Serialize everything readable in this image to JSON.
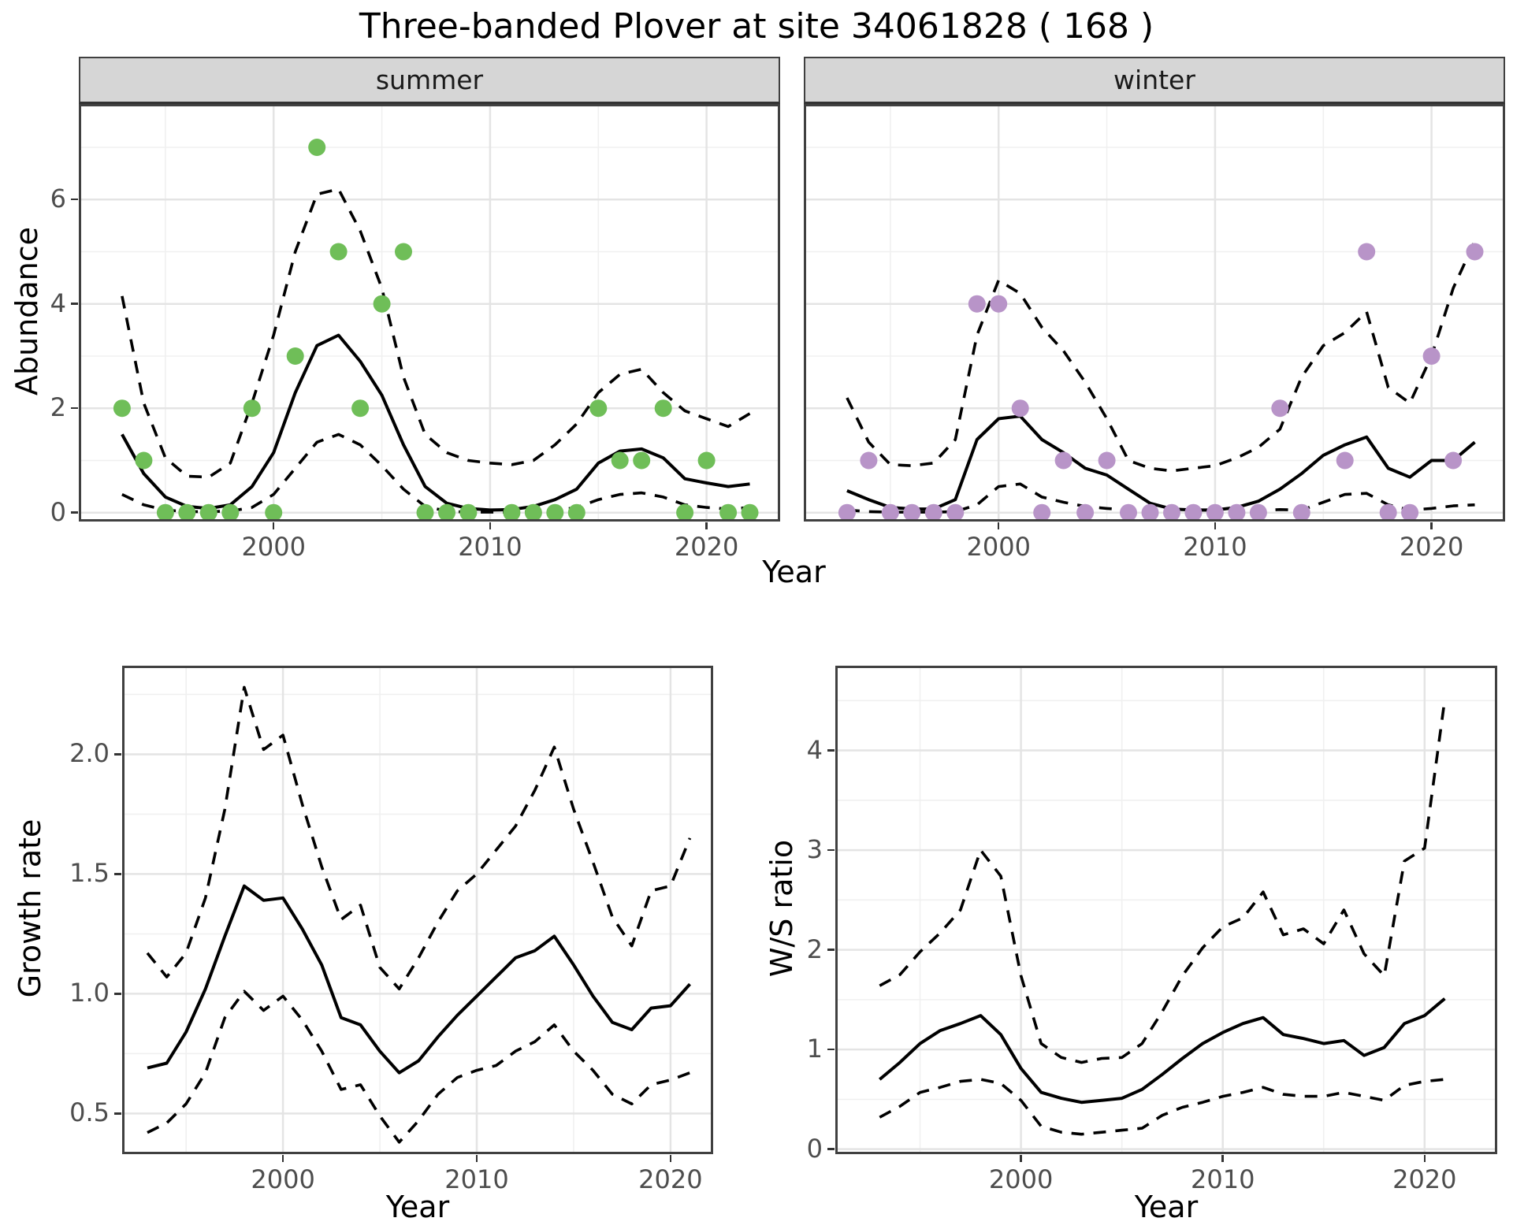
{
  "title": "Three-banded Plover at site 34061828 ( 168 )",
  "figure": {
    "top": {
      "ylab": "Abundance",
      "xlab": "Year"
    },
    "bottom_left": {
      "ylab": "Growth rate",
      "xlab": "Year"
    },
    "bottom_right": {
      "ylab": "W/S ratio",
      "xlab": "Year"
    }
  },
  "colors": {
    "summer_points": "#6FBE58",
    "winter_points": "#B894C8",
    "fit_line": "#000000",
    "ci_line": "#000000",
    "grid_major": "#e4e4e4",
    "grid_minor": "#f0f0f0",
    "strip_bg": "#d6d6d6",
    "panel_border": "#404040",
    "tick_text": "#4d4d4d"
  },
  "chart_data": [
    {
      "id": "summer",
      "type": "line",
      "facet_label": "summer",
      "xlim": [
        1991.0,
        2023.4
      ],
      "ylim": [
        -0.17,
        7.83
      ],
      "xticks": {
        "values": [
          2000,
          2010,
          2020
        ],
        "labels": [
          "2000",
          "2010",
          "2020"
        ]
      },
      "xminor": [
        1995,
        2005,
        2015
      ],
      "yticks": {
        "values": [
          0,
          2,
          4,
          6
        ],
        "labels": [
          "0",
          "2",
          "4",
          "6"
        ]
      },
      "yminor": [
        1,
        3,
        5,
        7
      ],
      "x": [
        1993,
        1994,
        1995,
        1996,
        1997,
        1998,
        1999,
        2000,
        2001,
        2002,
        2003,
        2004,
        2005,
        2006,
        2007,
        2008,
        2009,
        2010,
        2011,
        2012,
        2013,
        2014,
        2015,
        2016,
        2017,
        2018,
        2019,
        2020,
        2021,
        2022
      ],
      "series": [
        {
          "name": "fit",
          "style": "solid",
          "values": [
            1.5,
            0.75,
            0.3,
            0.12,
            0.08,
            0.15,
            0.5,
            1.15,
            2.3,
            3.2,
            3.4,
            2.9,
            2.25,
            1.3,
            0.5,
            0.18,
            0.08,
            0.05,
            0.06,
            0.12,
            0.25,
            0.45,
            0.95,
            1.18,
            1.22,
            1.05,
            0.65,
            0.57,
            0.5,
            0.55
          ]
        },
        {
          "name": "upper_ci",
          "style": "dashed",
          "values": [
            4.15,
            2.1,
            1.05,
            0.7,
            0.68,
            0.95,
            2.1,
            3.4,
            5.0,
            6.1,
            6.2,
            5.4,
            4.3,
            2.6,
            1.5,
            1.15,
            1.0,
            0.95,
            0.92,
            1.0,
            1.3,
            1.7,
            2.3,
            2.65,
            2.75,
            2.3,
            1.95,
            1.8,
            1.65,
            1.9
          ]
        },
        {
          "name": "lower_ci",
          "style": "dashed",
          "values": [
            0.35,
            0.15,
            0.05,
            0.02,
            0.02,
            0.03,
            0.1,
            0.35,
            0.85,
            1.35,
            1.5,
            1.3,
            0.9,
            0.45,
            0.12,
            0.03,
            0.01,
            0.01,
            0.01,
            0.02,
            0.04,
            0.1,
            0.25,
            0.35,
            0.38,
            0.3,
            0.15,
            0.1,
            0.07,
            0.1
          ]
        }
      ],
      "points": {
        "color_key": "summer_points",
        "x": [
          1993,
          1994,
          1995,
          1996,
          1997,
          1998,
          1999,
          2000,
          2001,
          2002,
          2003,
          2004,
          2005,
          2006,
          2007,
          2008,
          2009,
          2011,
          2012,
          2013,
          2014,
          2015,
          2016,
          2017,
          2018,
          2019,
          2020,
          2021,
          2022
        ],
        "y": [
          2,
          1,
          0,
          0,
          0,
          0,
          2,
          0,
          3,
          7,
          5,
          2,
          4,
          5,
          0,
          0,
          0,
          0,
          0,
          0,
          0,
          2,
          1,
          1,
          2,
          0,
          1,
          0,
          0
        ]
      }
    },
    {
      "id": "winter",
      "type": "line",
      "facet_label": "winter",
      "xlim": [
        1991.0,
        2023.4
      ],
      "ylim": [
        -0.17,
        7.83
      ],
      "xticks": {
        "values": [
          2000,
          2010,
          2020
        ],
        "labels": [
          "2000",
          "2010",
          "2020"
        ]
      },
      "xminor": [
        1995,
        2005,
        2015
      ],
      "yticks": {
        "values": [
          0,
          2,
          4,
          6
        ],
        "labels": [
          "0",
          "2",
          "4",
          "6"
        ]
      },
      "yminor": [
        1,
        3,
        5,
        7
      ],
      "x": [
        1993,
        1994,
        1995,
        1996,
        1997,
        1998,
        1999,
        2000,
        2001,
        2002,
        2003,
        2004,
        2005,
        2006,
        2007,
        2008,
        2009,
        2010,
        2011,
        2012,
        2013,
        2014,
        2015,
        2016,
        2017,
        2018,
        2019,
        2020,
        2021,
        2022
      ],
      "series": [
        {
          "name": "fit",
          "style": "solid",
          "values": [
            0.42,
            0.25,
            0.1,
            0.07,
            0.07,
            0.25,
            1.4,
            1.8,
            1.85,
            1.4,
            1.15,
            0.85,
            0.72,
            0.45,
            0.18,
            0.07,
            0.05,
            0.05,
            0.1,
            0.22,
            0.45,
            0.75,
            1.1,
            1.3,
            1.45,
            0.85,
            0.68,
            1.0,
            1.0,
            1.35
          ]
        },
        {
          "name": "upper_ci",
          "style": "dashed",
          "values": [
            2.2,
            1.35,
            0.92,
            0.9,
            0.95,
            1.4,
            3.4,
            4.45,
            4.2,
            3.55,
            3.1,
            2.5,
            1.8,
            1.0,
            0.85,
            0.8,
            0.85,
            0.9,
            1.05,
            1.25,
            1.6,
            2.6,
            3.2,
            3.45,
            3.85,
            2.4,
            2.1,
            3.0,
            4.3,
            5.2
          ]
        },
        {
          "name": "lower_ci",
          "style": "dashed",
          "values": [
            0.05,
            0.02,
            0.01,
            0.01,
            0.01,
            0.02,
            0.15,
            0.5,
            0.55,
            0.3,
            0.2,
            0.12,
            0.08,
            0.05,
            0.02,
            0.01,
            0.01,
            0.01,
            0.02,
            0.04,
            0.06,
            0.05,
            0.2,
            0.35,
            0.37,
            0.15,
            0.05,
            0.08,
            0.13,
            0.15
          ]
        }
      ],
      "points": {
        "color_key": "winter_points",
        "x": [
          1993,
          1994,
          1995,
          1996,
          1997,
          1998,
          1999,
          2000,
          2001,
          2002,
          2003,
          2004,
          2005,
          2006,
          2007,
          2008,
          2009,
          2010,
          2011,
          2012,
          2013,
          2014,
          2016,
          2017,
          2018,
          2019,
          2020,
          2021,
          2022
        ],
        "y": [
          0,
          1,
          0,
          0,
          0,
          0,
          4,
          4,
          2,
          0,
          1,
          0,
          1,
          0,
          0,
          0,
          0,
          0,
          0,
          0,
          2,
          0,
          1,
          5,
          0,
          0,
          3,
          1,
          5
        ]
      }
    },
    {
      "id": "growth",
      "type": "line",
      "facet_label": "",
      "xlim": [
        1991.7,
        2022.2
      ],
      "ylim": [
        0.33,
        2.37
      ],
      "xticks": {
        "values": [
          2000,
          2010,
          2020
        ],
        "labels": [
          "2000",
          "2010",
          "2020"
        ]
      },
      "xminor": [
        1995,
        2005,
        2015
      ],
      "yticks": {
        "values": [
          0.5,
          1.0,
          1.5,
          2.0
        ],
        "labels": [
          "0.5",
          "1.0",
          "1.5",
          "2.0"
        ]
      },
      "yminor": [
        0.75,
        1.25,
        1.75,
        2.25
      ],
      "x": [
        1993,
        1994,
        1995,
        1996,
        1997,
        1998,
        1999,
        2000,
        2001,
        2002,
        2003,
        2004,
        2005,
        2006,
        2007,
        2008,
        2009,
        2010,
        2011,
        2012,
        2013,
        2014,
        2015,
        2016,
        2017,
        2018,
        2019,
        2020,
        2021
      ],
      "series": [
        {
          "name": "fit",
          "style": "solid",
          "values": [
            0.69,
            0.71,
            0.84,
            1.02,
            1.24,
            1.45,
            1.39,
            1.4,
            1.27,
            1.12,
            0.9,
            0.87,
            0.76,
            0.67,
            0.72,
            0.82,
            0.91,
            0.99,
            1.07,
            1.15,
            1.18,
            1.24,
            1.12,
            0.99,
            0.88,
            0.85,
            0.94,
            0.95,
            1.04
          ]
        },
        {
          "name": "upper_ci",
          "style": "dashed",
          "values": [
            1.17,
            1.07,
            1.17,
            1.4,
            1.77,
            2.28,
            2.02,
            2.08,
            1.79,
            1.53,
            1.31,
            1.37,
            1.11,
            1.02,
            1.15,
            1.3,
            1.43,
            1.5,
            1.6,
            1.7,
            1.85,
            2.03,
            1.77,
            1.55,
            1.32,
            1.2,
            1.43,
            1.45,
            1.65
          ]
        },
        {
          "name": "lower_ci",
          "style": "dashed",
          "values": [
            0.42,
            0.46,
            0.54,
            0.67,
            0.9,
            1.01,
            0.93,
            0.99,
            0.89,
            0.76,
            0.6,
            0.62,
            0.49,
            0.38,
            0.47,
            0.58,
            0.65,
            0.68,
            0.7,
            0.76,
            0.8,
            0.87,
            0.76,
            0.68,
            0.58,
            0.54,
            0.62,
            0.64,
            0.67
          ]
        }
      ],
      "points": null
    },
    {
      "id": "ws",
      "type": "line",
      "facet_label": "",
      "xlim": [
        1990.8,
        2023.6
      ],
      "ylim": [
        -0.05,
        4.85
      ],
      "xticks": {
        "values": [
          2000,
          2010,
          2020
        ],
        "labels": [
          "2000",
          "2010",
          "2020"
        ]
      },
      "xminor": [
        1995,
        2005,
        2015
      ],
      "yticks": {
        "values": [
          0,
          1,
          2,
          3,
          4
        ],
        "labels": [
          "0",
          "1",
          "2",
          "3",
          "4"
        ]
      },
      "yminor": [
        0.5,
        1.5,
        2.5,
        3.5,
        4.5
      ],
      "x": [
        1993,
        1994,
        1995,
        1996,
        1997,
        1998,
        1999,
        2000,
        2001,
        2002,
        2003,
        2004,
        2005,
        2006,
        2007,
        2008,
        2009,
        2010,
        2011,
        2012,
        2013,
        2014,
        2015,
        2016,
        2017,
        2018,
        2019,
        2020,
        2021
      ],
      "series": [
        {
          "name": "fit",
          "style": "solid",
          "values": [
            0.7,
            0.87,
            1.06,
            1.19,
            1.26,
            1.34,
            1.15,
            0.81,
            0.57,
            0.51,
            0.47,
            0.49,
            0.51,
            0.6,
            0.75,
            0.91,
            1.06,
            1.17,
            1.26,
            1.32,
            1.15,
            1.11,
            1.06,
            1.09,
            0.94,
            1.02,
            1.26,
            1.34,
            1.51
          ]
        },
        {
          "name": "upper_ci",
          "style": "dashed",
          "values": [
            1.64,
            1.75,
            1.98,
            2.17,
            2.4,
            3.0,
            2.74,
            1.74,
            1.06,
            0.92,
            0.87,
            0.91,
            0.92,
            1.06,
            1.38,
            1.74,
            2.02,
            2.23,
            2.32,
            2.58,
            2.15,
            2.21,
            2.06,
            2.4,
            1.96,
            1.74,
            2.89,
            3.02,
            4.51
          ]
        },
        {
          "name": "lower_ci",
          "style": "dashed",
          "values": [
            0.32,
            0.43,
            0.57,
            0.62,
            0.68,
            0.7,
            0.66,
            0.49,
            0.23,
            0.17,
            0.15,
            0.17,
            0.19,
            0.21,
            0.34,
            0.42,
            0.47,
            0.53,
            0.57,
            0.62,
            0.55,
            0.53,
            0.53,
            0.57,
            0.53,
            0.49,
            0.64,
            0.68,
            0.7
          ]
        }
      ],
      "points": null
    }
  ]
}
